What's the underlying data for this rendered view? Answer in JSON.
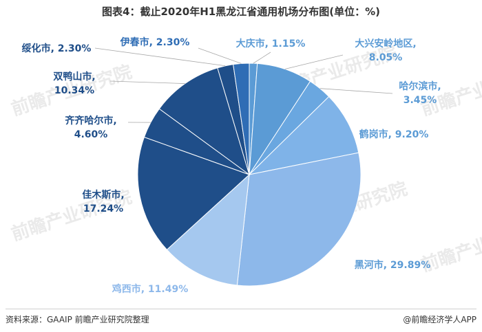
{
  "chart_data": {
    "type": "pie",
    "title": "图表4：截止2020年H1黑龙江省通用机场分布图(单位：%)",
    "slices": [
      {
        "label": "大庆市",
        "value": 1.15,
        "display": "1.15%",
        "color": "#5b9bd5",
        "label_color": "#5b9bd5"
      },
      {
        "label": "大兴安岭地区",
        "value": 8.05,
        "display": "8.05%",
        "color": "#5b9bd5",
        "label_color": "#5b9bd5"
      },
      {
        "label": "哈尔滨市",
        "value": 3.45,
        "display": "3.45%",
        "color": "#6aa7e0",
        "label_color": "#5b9bd5"
      },
      {
        "label": "鹤岗市",
        "value": 9.2,
        "display": "9.20%",
        "color": "#7fb3e8",
        "label_color": "#5b9bd5"
      },
      {
        "label": "黑河市",
        "value": 29.89,
        "display": "29.89%",
        "color": "#8db8ea",
        "label_color": "#5b9bd5"
      },
      {
        "label": "鸡西市",
        "value": 11.49,
        "display": "11.49%",
        "color": "#a5c8ef",
        "label_color": "#8db8ea"
      },
      {
        "label": "佳木斯市",
        "value": 17.24,
        "display": "17.24%",
        "color": "#1f4e89",
        "label_color": "#1f4e89"
      },
      {
        "label": "齐齐哈尔市",
        "value": 4.6,
        "display": "4.60%",
        "color": "#1f4e89",
        "label_color": "#1f4e89"
      },
      {
        "label": "双鸭山市",
        "value": 10.34,
        "display": "10.34%",
        "color": "#1f4e89",
        "label_color": "#1f4e89"
      },
      {
        "label": "绥化市",
        "value": 2.3,
        "display": "2.30%",
        "color": "#1f4e89",
        "label_color": "#1f4e89"
      },
      {
        "label": "伊春市",
        "value": 2.3,
        "display": "2.30%",
        "color": "#2f6db5",
        "label_color": "#2f6db5"
      }
    ]
  },
  "footer": {
    "source": "资料来源：GAAIP   前瞻产业研究院整理",
    "credit": "@前瞻经济学人APP"
  },
  "watermark": "前瞻产业研究院"
}
